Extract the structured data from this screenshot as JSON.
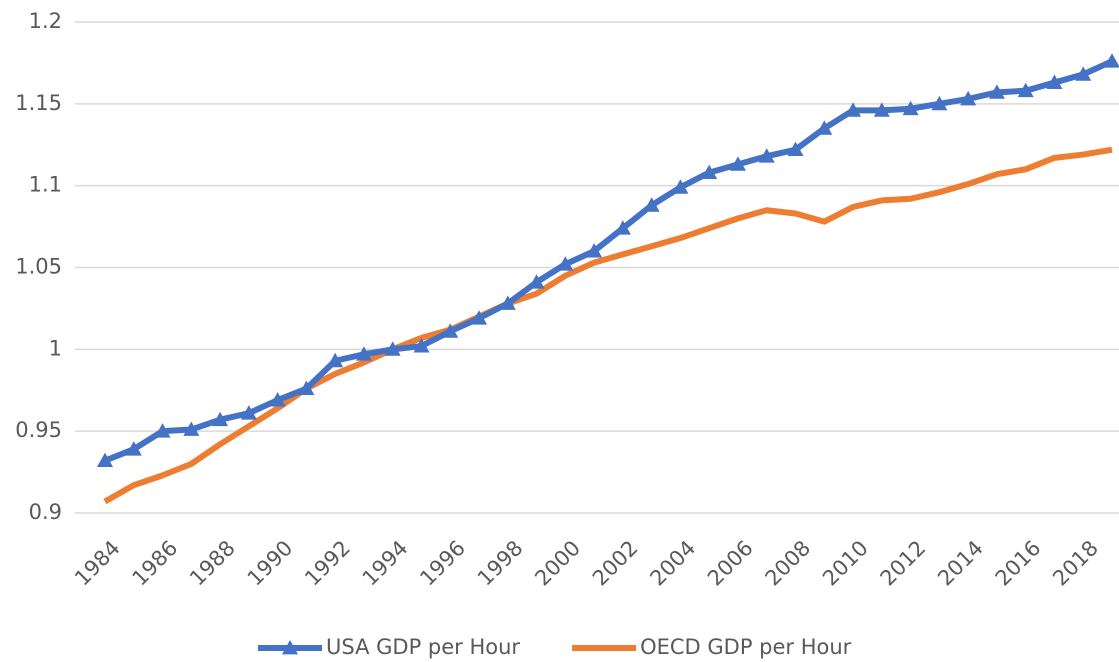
{
  "chart_data": {
    "type": "line",
    "x": [
      1984,
      1985,
      1986,
      1987,
      1988,
      1989,
      1990,
      1991,
      1992,
      1993,
      1994,
      1995,
      1996,
      1997,
      1998,
      1999,
      2000,
      2001,
      2002,
      2003,
      2004,
      2005,
      2006,
      2007,
      2008,
      2009,
      2010,
      2011,
      2012,
      2013,
      2014,
      2015,
      2016,
      2017,
      2018,
      2019
    ],
    "xlim": [
      1984,
      2019
    ],
    "xticks": [
      1984,
      1986,
      1988,
      1990,
      1992,
      1994,
      1996,
      1998,
      2000,
      2002,
      2004,
      2006,
      2008,
      2010,
      2012,
      2014,
      2016,
      2018
    ],
    "ylim": [
      0.9,
      1.2
    ],
    "yticks": [
      0.9,
      0.95,
      1,
      1.05,
      1.1,
      1.15,
      1.2
    ],
    "grid": true,
    "legend": "bottom",
    "series": [
      {
        "name": "USA GDP per Hour",
        "color": "#4472c4",
        "marker": "triangle",
        "values": [
          0.932,
          0.939,
          0.95,
          0.951,
          0.957,
          0.961,
          0.969,
          0.976,
          0.993,
          0.997,
          1.0,
          1.002,
          1.011,
          1.019,
          1.028,
          1.041,
          1.052,
          1.06,
          1.074,
          1.088,
          1.099,
          1.108,
          1.113,
          1.118,
          1.122,
          1.135,
          1.146,
          1.146,
          1.147,
          1.15,
          1.153,
          1.157,
          1.158,
          1.163,
          1.168,
          1.176
        ]
      },
      {
        "name": "OECD GDP per Hour",
        "color": "#ed7d31",
        "values": [
          0.907,
          0.917,
          0.923,
          0.93,
          0.942,
          0.953,
          0.964,
          0.976,
          0.985,
          0.992,
          1.0,
          1.007,
          1.012,
          1.02,
          1.028,
          1.034,
          1.045,
          1.053,
          1.058,
          1.063,
          1.068,
          1.074,
          1.08,
          1.085,
          1.083,
          1.078,
          1.087,
          1.091,
          1.092,
          1.096,
          1.101,
          1.107,
          1.11,
          1.117,
          1.119,
          1.122
        ]
      }
    ]
  }
}
